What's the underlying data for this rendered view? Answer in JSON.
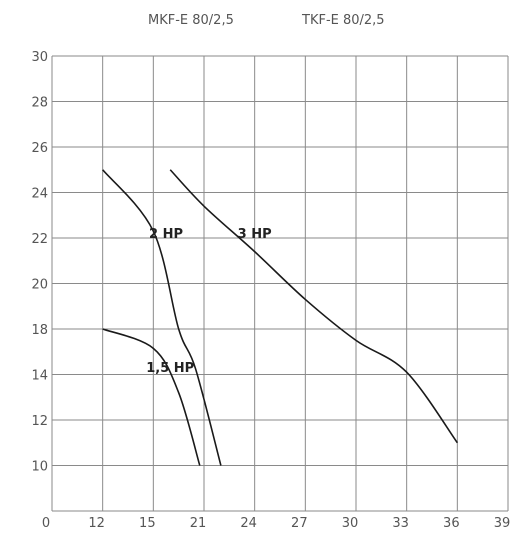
{
  "chart_data": {
    "type": "line",
    "header_labels": [
      "MKF-E 80/2,5",
      "TKF-E 80/2,5"
    ],
    "x_ticks": [
      "0",
      "12",
      "15",
      "21",
      "24",
      "27",
      "30",
      "33",
      "36",
      "39"
    ],
    "y_ticks": [
      "30",
      "28",
      "26",
      "24",
      "22",
      "20",
      "18",
      "14",
      "12",
      "10"
    ],
    "grid": true,
    "series": [
      {
        "name": "1,5 HP",
        "points": [
          [
            12,
            18
          ],
          [
            15,
            16.3
          ],
          [
            18,
            13.2
          ],
          [
            20.5,
            10
          ]
        ]
      },
      {
        "name": "2 HP",
        "points": [
          [
            12,
            25
          ],
          [
            15,
            22.3
          ],
          [
            18,
            18
          ],
          [
            20,
            14.5
          ],
          [
            22,
            10
          ]
        ]
      },
      {
        "name": "3 HP",
        "points": [
          [
            17,
            25
          ],
          [
            21,
            23.4
          ],
          [
            24,
            21.4
          ],
          [
            27,
            19.3
          ],
          [
            30,
            17
          ],
          [
            33,
            14.2
          ],
          [
            36,
            11
          ]
        ]
      }
    ],
    "colors": {
      "curve": "#1a1a1a",
      "grid": "#8a8a8a",
      "text": "#555555"
    }
  }
}
